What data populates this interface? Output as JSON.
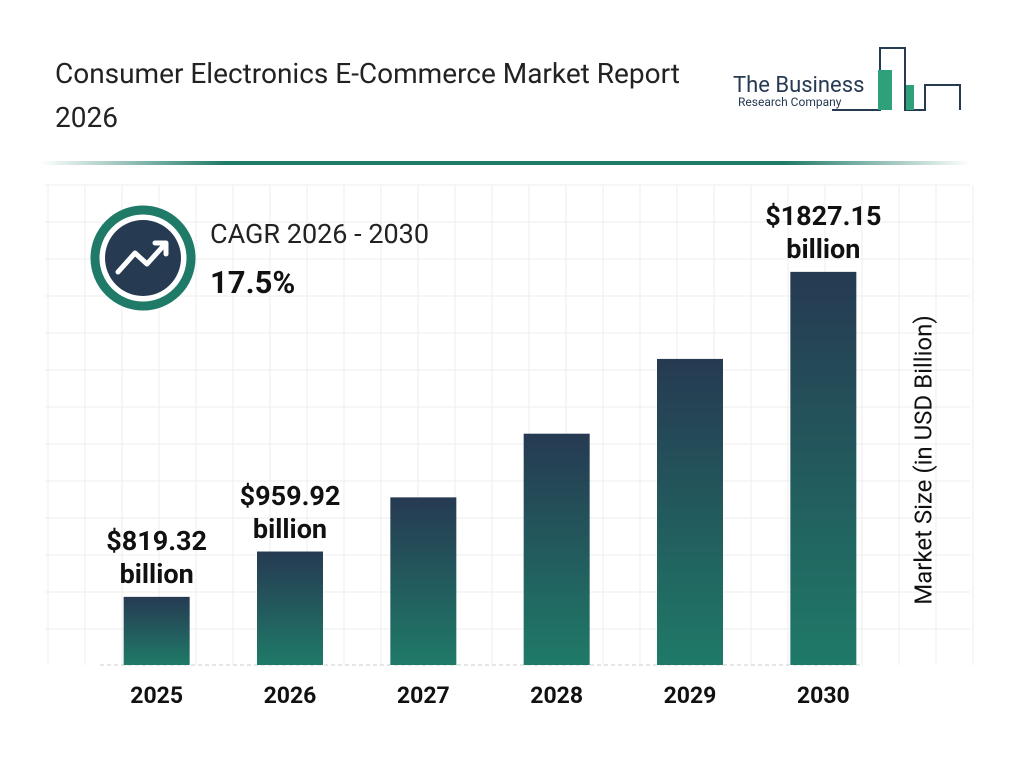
{
  "chart_data": {
    "type": "bar",
    "title": "Consumer Electronics E-Commerce Market Report 2026",
    "cagr_label": "CAGR 2026 - 2030",
    "cagr_value": "17.5%",
    "y_label": "Market Size (in USD Billion)",
    "categories": [
      "2025",
      "2026",
      "2027",
      "2028",
      "2029",
      "2030"
    ],
    "values": [
      819.32,
      959.92,
      1127.9,
      1325.3,
      1557.2,
      1827.15
    ],
    "value_labels": [
      "$819.32 billion",
      "$959.92 billion",
      null,
      null,
      null,
      "$1827.15 billion"
    ],
    "color_top": "#263a52",
    "color_bottom": "#1f7a68",
    "ylim": [
      608,
      2050
    ]
  },
  "logo": {
    "line1": "The Business",
    "line2": "Research Company"
  }
}
